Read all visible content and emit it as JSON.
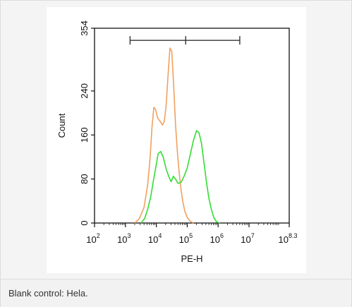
{
  "caption": "Blank control: Hela.",
  "chart_data": {
    "type": "line",
    "title": "",
    "xlabel": "PE-H",
    "ylabel": "Count",
    "x_scale": "log10",
    "xlim_log10": [
      2,
      8.3
    ],
    "ylim": [
      0,
      354
    ],
    "x_ticks": [
      {
        "base": "10",
        "exp": "2",
        "v": 2
      },
      {
        "base": "10",
        "exp": "3",
        "v": 3
      },
      {
        "base": "10",
        "exp": "4",
        "v": 4
      },
      {
        "base": "10",
        "exp": "5",
        "v": 5
      },
      {
        "base": "10",
        "exp": "6",
        "v": 6
      },
      {
        "base": "10",
        "exp": "7",
        "v": 7
      },
      {
        "base": "10",
        "exp": "8.3",
        "v": 8.3
      }
    ],
    "y_ticks": [
      {
        "label": "0",
        "v": 0
      },
      {
        "label": "80",
        "v": 80
      },
      {
        "label": "160",
        "v": 160
      },
      {
        "label": "240",
        "v": 240
      },
      {
        "label": "354",
        "v": 354
      }
    ],
    "gate": {
      "x_start_log10": 3.15,
      "x_mid_log10": 4.95,
      "x_end_log10": 6.7,
      "y": 332,
      "color": "#333333"
    },
    "series": [
      {
        "color": "#f0a060",
        "points": [
          [
            3.3,
            0
          ],
          [
            3.45,
            8
          ],
          [
            3.6,
            28
          ],
          [
            3.72,
            70
          ],
          [
            3.8,
            120
          ],
          [
            3.86,
            175
          ],
          [
            3.92,
            210
          ],
          [
            3.97,
            207
          ],
          [
            4.05,
            190
          ],
          [
            4.12,
            185
          ],
          [
            4.2,
            178
          ],
          [
            4.26,
            185
          ],
          [
            4.32,
            215
          ],
          [
            4.38,
            270
          ],
          [
            4.44,
            318
          ],
          [
            4.5,
            312
          ],
          [
            4.56,
            250
          ],
          [
            4.62,
            180
          ],
          [
            4.68,
            130
          ],
          [
            4.74,
            92
          ],
          [
            4.8,
            60
          ],
          [
            4.86,
            38
          ],
          [
            4.92,
            22
          ],
          [
            5.0,
            10
          ],
          [
            5.1,
            3
          ],
          [
            5.2,
            0
          ]
        ]
      },
      {
        "color": "#33dd33",
        "points": [
          [
            3.5,
            0
          ],
          [
            3.62,
            8
          ],
          [
            3.72,
            25
          ],
          [
            3.82,
            48
          ],
          [
            3.9,
            75
          ],
          [
            3.98,
            100
          ],
          [
            4.06,
            126
          ],
          [
            4.14,
            130
          ],
          [
            4.22,
            120
          ],
          [
            4.32,
            98
          ],
          [
            4.4,
            85
          ],
          [
            4.48,
            75
          ],
          [
            4.55,
            85
          ],
          [
            4.62,
            80
          ],
          [
            4.7,
            72
          ],
          [
            4.8,
            74
          ],
          [
            4.9,
            85
          ],
          [
            5.0,
            100
          ],
          [
            5.1,
            125
          ],
          [
            5.2,
            150
          ],
          [
            5.3,
            168
          ],
          [
            5.38,
            164
          ],
          [
            5.46,
            145
          ],
          [
            5.54,
            110
          ],
          [
            5.62,
            75
          ],
          [
            5.7,
            45
          ],
          [
            5.78,
            25
          ],
          [
            5.86,
            10
          ],
          [
            5.95,
            2
          ],
          [
            6.05,
            0
          ]
        ]
      }
    ]
  }
}
